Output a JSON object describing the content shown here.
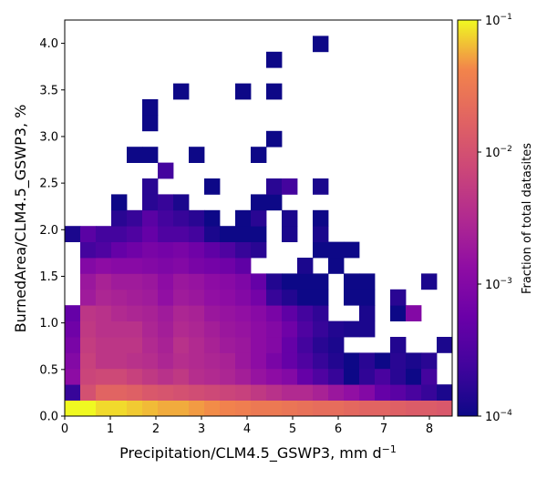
{
  "chart_data": {
    "type": "heatmap",
    "xlabel": "Precipitation/CLM4.5_GSWP3,  mm d",
    "xlabel_sup": "−1",
    "ylabel": "BurnedArea/CLM4.5_GSWP3,  %",
    "colorbar_label": "Fraction of total datasites",
    "colormap": "plasma",
    "color_scale": "log",
    "color_range": [
      0.0001,
      0.1
    ],
    "xlim": [
      0,
      8.5
    ],
    "ylim": [
      0,
      4.25
    ],
    "x_bin_width": 0.34,
    "y_bin_width": 0.17,
    "x_ticks": [
      0,
      1,
      2,
      3,
      4,
      5,
      6,
      7,
      8
    ],
    "x_tick_labels": [
      "0",
      "1",
      "2",
      "3",
      "4",
      "5",
      "6",
      "7",
      "8"
    ],
    "y_ticks": [
      0.0,
      0.5,
      1.0,
      1.5,
      2.0,
      2.5,
      3.0,
      3.5,
      4.0
    ],
    "y_tick_labels": [
      "0.0",
      "0.5",
      "1.0",
      "1.5",
      "2.0",
      "2.5",
      "3.0",
      "3.5",
      "4.0"
    ],
    "colorbar_ticks": [
      {
        "base": "10",
        "exp": "−1",
        "value": 0.1
      },
      {
        "base": "10",
        "exp": "−2",
        "value": 0.01
      },
      {
        "base": "10",
        "exp": "−3",
        "value": 0.001
      },
      {
        "base": "10",
        "exp": "−4",
        "value": 0.0001
      }
    ],
    "grid": false,
    "rows_note": "rows from y=0 upward; entries are log10(fraction); null = empty",
    "rows": [
      [
        -1.0,
        -1.0,
        -1.1,
        -1.1,
        -1.15,
        -1.2,
        -1.25,
        -1.25,
        -1.3,
        -1.35,
        -1.4,
        -1.45,
        -1.5,
        -1.5,
        -1.55,
        -1.6,
        -1.65,
        -1.65,
        -1.7,
        -1.75,
        -1.75,
        -1.8,
        -1.85,
        -1.85,
        -1.9
      ],
      [
        -3.7,
        -2.0,
        -1.75,
        -1.75,
        -1.8,
        -1.9,
        -1.95,
        -2.0,
        -2.05,
        -2.1,
        -2.15,
        -2.2,
        -2.3,
        -2.4,
        -2.5,
        -2.5,
        -2.6,
        -2.75,
        -2.85,
        -3.0,
        -3.3,
        -3.4,
        -3.55,
        -3.7,
        -3.9
      ],
      [
        -2.9,
        -2.15,
        -2.1,
        -2.1,
        -2.2,
        -2.3,
        -2.4,
        -2.3,
        -2.45,
        -2.5,
        -2.55,
        -2.65,
        -2.8,
        -2.9,
        -3.0,
        -3.3,
        -3.5,
        -3.7,
        -4.0,
        -3.75,
        -3.55,
        -3.8,
        -4.0,
        -3.6,
        null
      ],
      [
        -3.0,
        -2.2,
        -2.35,
        -2.35,
        -2.4,
        -2.45,
        -2.55,
        -2.45,
        -2.5,
        -2.55,
        -2.6,
        -2.75,
        -2.9,
        -3.1,
        -3.3,
        -3.5,
        -3.7,
        -3.85,
        -4.0,
        -3.8,
        -4.0,
        -3.8,
        -3.9,
        -3.8,
        null
      ],
      [
        -3.1,
        -2.25,
        -2.35,
        -2.35,
        -2.35,
        -2.5,
        -2.6,
        -2.4,
        -2.5,
        -2.6,
        -2.7,
        -2.75,
        -2.9,
        -3.0,
        -3.3,
        -3.6,
        -3.8,
        -3.9,
        null,
        null,
        null,
        -3.85,
        null,
        null,
        -3.9
      ],
      [
        -3.2,
        -2.3,
        -2.4,
        -2.4,
        -2.4,
        -2.55,
        -2.65,
        -2.5,
        -2.55,
        -2.65,
        -2.75,
        -2.8,
        -2.9,
        -3.0,
        -3.2,
        -3.5,
        -3.7,
        -3.85,
        -3.9,
        -3.9,
        null,
        null,
        null,
        null,
        null
      ],
      [
        -3.3,
        -2.35,
        -2.4,
        -2.5,
        -2.55,
        -2.6,
        -2.7,
        -2.55,
        -2.6,
        -2.75,
        -2.8,
        -2.85,
        -2.95,
        -3.1,
        -3.35,
        -3.6,
        -3.75,
        null,
        null,
        -3.9,
        null,
        -4.0,
        -3.0,
        null,
        null
      ],
      [
        null,
        -2.7,
        -2.55,
        -2.6,
        -2.65,
        -2.7,
        -2.85,
        -2.7,
        -2.75,
        -2.85,
        -2.9,
        -3.0,
        -3.15,
        -3.7,
        -3.85,
        -4.0,
        -4.0,
        null,
        -4.0,
        -4.0,
        null,
        -3.8,
        null,
        null,
        null
      ],
      [
        null,
        -2.75,
        -2.6,
        -2.7,
        -2.7,
        -2.75,
        -2.9,
        -2.75,
        -2.8,
        -2.9,
        -2.95,
        -3.05,
        -3.3,
        -3.85,
        -4.0,
        -4.0,
        -4.0,
        null,
        -4.0,
        -4.0,
        null,
        null,
        null,
        -3.9,
        null
      ],
      [
        null,
        -3.0,
        -2.9,
        -2.95,
        -2.95,
        -3.0,
        -3.05,
        -3.0,
        -3.1,
        -3.15,
        -3.2,
        -3.35,
        null,
        null,
        null,
        -3.9,
        null,
        -4.0,
        null,
        null,
        null,
        null,
        null,
        null,
        null
      ],
      [
        null,
        -3.6,
        -3.5,
        -3.3,
        -3.2,
        -3.1,
        -3.15,
        -3.1,
        -3.2,
        -3.35,
        -3.5,
        -3.7,
        -3.8,
        null,
        null,
        null,
        -4.0,
        -4.0,
        -4.0,
        null,
        null,
        null,
        null,
        null,
        null
      ],
      [
        -3.9,
        -3.4,
        -3.6,
        -3.6,
        -3.5,
        -3.3,
        -3.5,
        -3.5,
        -3.6,
        -3.9,
        -4.0,
        -4.0,
        -4.0,
        null,
        -3.9,
        null,
        -3.9,
        null,
        null,
        null,
        null,
        null,
        null,
        null,
        null
      ],
      [
        null,
        null,
        null,
        -3.8,
        -3.7,
        -3.4,
        -3.6,
        -3.7,
        -3.8,
        -4.0,
        null,
        -4.0,
        -3.8,
        null,
        -3.9,
        null,
        -4.0,
        null,
        null,
        null,
        null,
        null,
        null,
        null,
        null
      ],
      [
        null,
        null,
        null,
        -4.0,
        null,
        -3.8,
        -3.7,
        -3.9,
        null,
        null,
        null,
        null,
        -4.0,
        -4.0,
        null,
        null,
        null,
        null,
        null,
        null,
        null,
        null,
        null,
        null,
        null
      ],
      [
        null,
        null,
        null,
        null,
        null,
        -3.8,
        null,
        null,
        null,
        -4.0,
        null,
        null,
        null,
        -3.8,
        -3.6,
        null,
        -3.9,
        null,
        null,
        null,
        null,
        null,
        null,
        null,
        null
      ],
      [
        null,
        null,
        null,
        null,
        null,
        null,
        -3.6,
        null,
        null,
        null,
        null,
        null,
        null,
        null,
        null,
        null,
        null,
        null,
        null,
        null,
        null,
        null,
        null,
        null,
        null
      ],
      [
        null,
        null,
        null,
        null,
        -4.0,
        -4.0,
        null,
        null,
        -4.0,
        null,
        null,
        null,
        -4.0,
        null,
        null,
        null,
        null,
        null,
        null,
        null,
        null,
        null,
        null,
        null,
        null
      ],
      [
        null,
        null,
        null,
        null,
        null,
        null,
        null,
        null,
        null,
        null,
        null,
        null,
        null,
        -4.0,
        null,
        null,
        null,
        null,
        null,
        null,
        null,
        null,
        null,
        null,
        null
      ],
      [
        null,
        null,
        null,
        null,
        null,
        -4.0,
        null,
        null,
        null,
        null,
        null,
        null,
        null,
        null,
        null,
        null,
        null,
        null,
        null,
        null,
        null,
        null,
        null,
        null,
        null
      ],
      [
        null,
        null,
        null,
        null,
        null,
        -4.0,
        null,
        null,
        null,
        null,
        null,
        null,
        null,
        null,
        null,
        null,
        null,
        null,
        null,
        null,
        null,
        null,
        null,
        null,
        null
      ],
      [
        null,
        null,
        null,
        null,
        null,
        null,
        null,
        -4.0,
        null,
        null,
        null,
        -4.0,
        null,
        -4.0,
        null,
        null,
        null,
        null,
        null,
        null,
        null,
        null,
        null,
        null,
        null
      ],
      [
        null,
        null,
        null,
        null,
        null,
        null,
        null,
        null,
        null,
        null,
        null,
        null,
        null,
        null,
        null,
        null,
        null,
        null,
        null,
        null,
        null,
        null,
        null,
        null,
        null
      ],
      [
        null,
        null,
        null,
        null,
        null,
        null,
        null,
        null,
        null,
        null,
        null,
        null,
        null,
        -4.0,
        null,
        null,
        null,
        null,
        null,
        null,
        null,
        null,
        null,
        null,
        null
      ],
      [
        null,
        null,
        null,
        null,
        null,
        null,
        null,
        null,
        null,
        null,
        null,
        null,
        null,
        null,
        null,
        null,
        -4.0,
        null,
        null,
        null,
        null,
        null,
        null,
        null,
        null
      ],
      [
        null,
        null,
        null,
        null,
        null,
        null,
        null,
        null,
        null,
        null,
        null,
        null,
        null,
        null,
        null,
        null,
        null,
        null,
        null,
        null,
        null,
        null,
        null,
        null,
        null
      ]
    ]
  }
}
